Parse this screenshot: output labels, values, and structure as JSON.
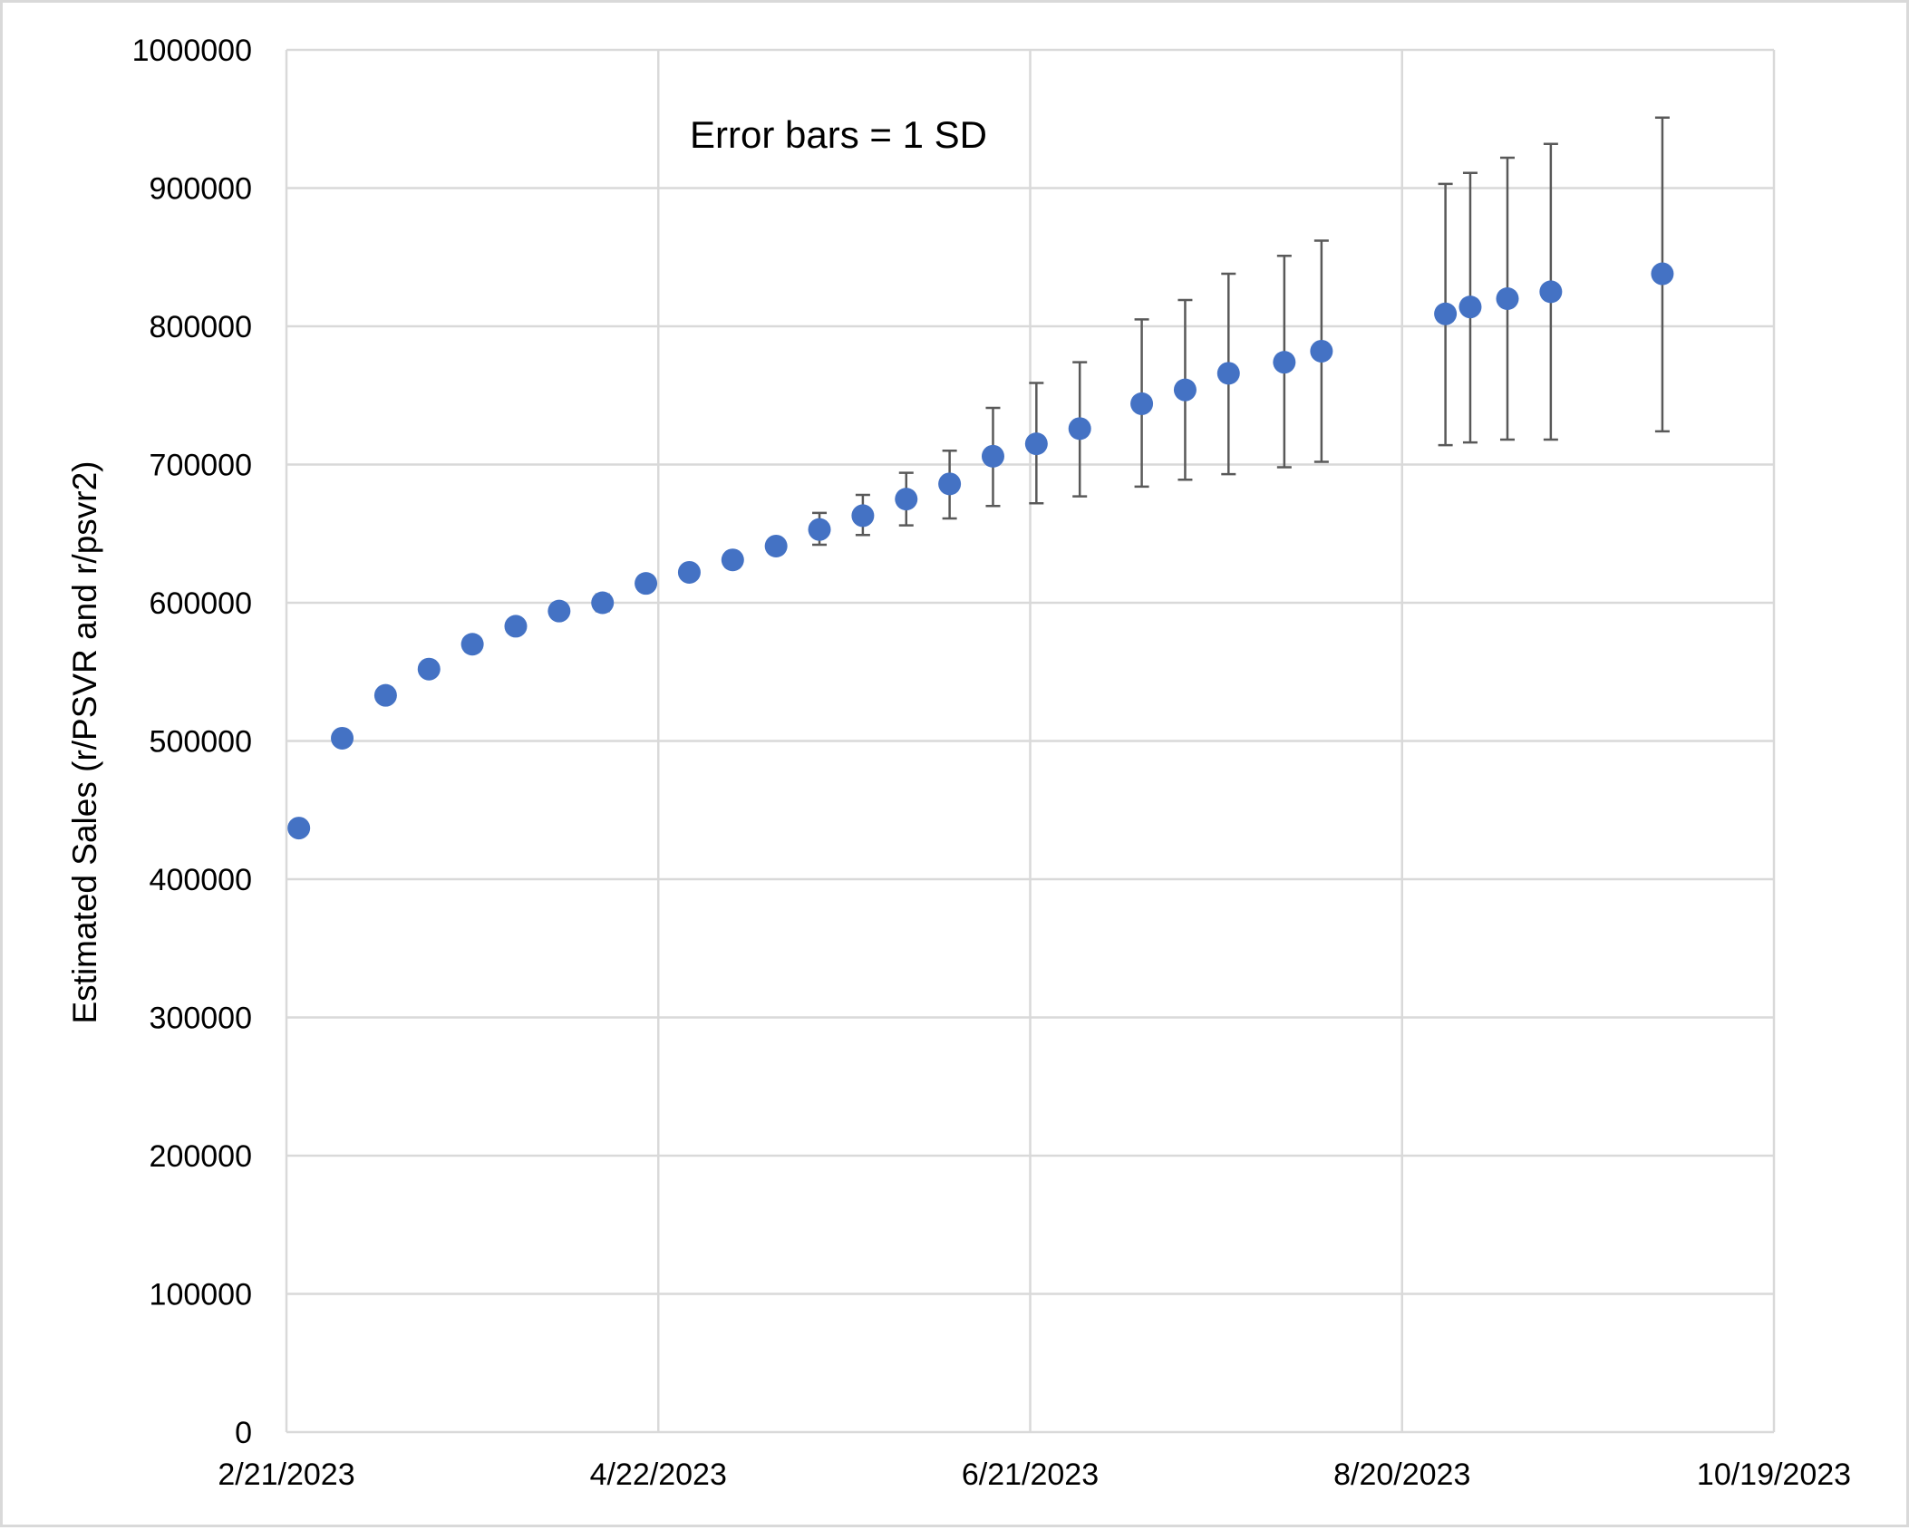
{
  "chart_data": {
    "type": "scatter",
    "title": "",
    "xlabel": "",
    "ylabel": "Estimated Sales (r/PSVR and r/psvr2)",
    "annotation": "Error bars = 1 SD",
    "grid": true,
    "legend": "none",
    "marker_color": "#4472C4",
    "error_bar_color": "#595959",
    "grid_color": "#D9D9D9",
    "x_type": "date",
    "xlim": [
      "2023-02-21",
      "2023-10-19"
    ],
    "x_ticks": [
      "2023-02-21",
      "2023-04-22",
      "2023-06-21",
      "2023-08-20",
      "2023-10-19"
    ],
    "x_tick_labels": [
      "2/21/2023",
      "4/22/2023",
      "6/21/2023",
      "8/20/2023",
      "10/19/2023"
    ],
    "ylim": [
      0,
      1000000
    ],
    "y_ticks": [
      0,
      100000,
      200000,
      300000,
      400000,
      500000,
      600000,
      700000,
      800000,
      900000,
      1000000
    ],
    "y_tick_labels": [
      "0",
      "100000",
      "200000",
      "300000",
      "400000",
      "500000",
      "600000",
      "700000",
      "800000",
      "900000",
      "1000000"
    ],
    "series": [
      {
        "points": [
          {
            "x": "2023-02-23",
            "y": 437000
          },
          {
            "x": "2023-03-02",
            "y": 502000
          },
          {
            "x": "2023-03-09",
            "y": 533000
          },
          {
            "x": "2023-03-16",
            "y": 552000
          },
          {
            "x": "2023-03-23",
            "y": 570000
          },
          {
            "x": "2023-03-30",
            "y": 583000
          },
          {
            "x": "2023-04-06",
            "y": 594000
          },
          {
            "x": "2023-04-13",
            "y": 600000,
            "err_low": 594000,
            "err_high": 606000
          },
          {
            "x": "2023-04-20",
            "y": 614000
          },
          {
            "x": "2023-04-27",
            "y": 622000
          },
          {
            "x": "2023-05-04",
            "y": 631000
          },
          {
            "x": "2023-05-11",
            "y": 641000
          },
          {
            "x": "2023-05-18",
            "y": 653000,
            "err_low": 642000,
            "err_high": 665000
          },
          {
            "x": "2023-05-25",
            "y": 663000,
            "err_low": 649000,
            "err_high": 678000
          },
          {
            "x": "2023-06-01",
            "y": 675000,
            "err_low": 656000,
            "err_high": 694000
          },
          {
            "x": "2023-06-08",
            "y": 686000,
            "err_low": 661000,
            "err_high": 710000
          },
          {
            "x": "2023-06-15",
            "y": 706000,
            "err_low": 670000,
            "err_high": 741000
          },
          {
            "x": "2023-06-22",
            "y": 715000,
            "err_low": 672000,
            "err_high": 759000
          },
          {
            "x": "2023-06-29",
            "y": 726000,
            "err_low": 677000,
            "err_high": 774000
          },
          {
            "x": "2023-07-09",
            "y": 744000,
            "err_low": 684000,
            "err_high": 805000
          },
          {
            "x": "2023-07-16",
            "y": 754000,
            "err_low": 689000,
            "err_high": 819000
          },
          {
            "x": "2023-07-23",
            "y": 766000,
            "err_low": 693000,
            "err_high": 838000
          },
          {
            "x": "2023-08-01",
            "y": 774000,
            "err_low": 698000,
            "err_high": 851000
          },
          {
            "x": "2023-08-07",
            "y": 782000,
            "err_low": 702000,
            "err_high": 862000
          },
          {
            "x": "2023-08-27",
            "y": 809000,
            "err_low": 714000,
            "err_high": 903000
          },
          {
            "x": "2023-08-31",
            "y": 814000,
            "err_low": 716000,
            "err_high": 911000
          },
          {
            "x": "2023-09-06",
            "y": 820000,
            "err_low": 718000,
            "err_high": 922000
          },
          {
            "x": "2023-09-13",
            "y": 825000,
            "err_low": 718000,
            "err_high": 932000
          },
          {
            "x": "2023-10-01",
            "y": 838000,
            "err_low": 724000,
            "err_high": 951000
          }
        ]
      }
    ]
  }
}
